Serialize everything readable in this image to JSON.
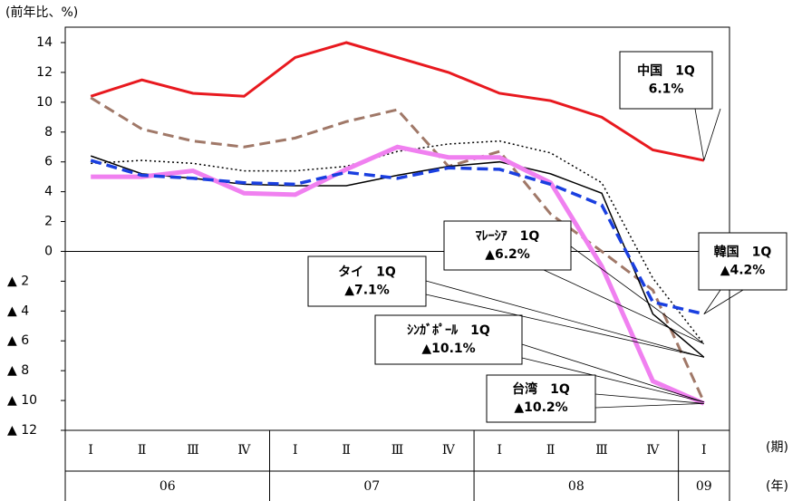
{
  "chart_data": {
    "type": "line",
    "y_label": "(前年比、%)",
    "categories": [
      "Ⅰ",
      "Ⅱ",
      "Ⅲ",
      "Ⅳ",
      "Ⅰ",
      "Ⅱ",
      "Ⅲ",
      "Ⅳ",
      "Ⅰ",
      "Ⅱ",
      "Ⅲ",
      "Ⅳ",
      "Ⅰ"
    ],
    "x_label": "(期)",
    "year_label": "(年)",
    "years": [
      {
        "label": "06",
        "count": 4
      },
      {
        "label": "07",
        "count": 4
      },
      {
        "label": "08",
        "count": 4
      },
      {
        "label": "09",
        "count": 1
      }
    ],
    "ylim": [
      -12,
      14
    ],
    "yticks": [
      {
        "value": -12,
        "label": "▲ 12"
      },
      {
        "value": -10,
        "label": "▲ 10"
      },
      {
        "value": -8,
        "label": "▲ 8"
      },
      {
        "value": -6,
        "label": "▲ 6"
      },
      {
        "value": -4,
        "label": "▲ 4"
      },
      {
        "value": -2,
        "label": "▲ 2"
      },
      0,
      2,
      4,
      6,
      8,
      10,
      12,
      14
    ],
    "series": [
      {
        "color": "#e8191f",
        "style": "solid",
        "width": 3,
        "annotation": [
          "中国　1Q",
          "6.1%"
        ],
        "values": [
          10.4,
          11.5,
          10.6,
          10.4,
          13.0,
          14.0,
          13.0,
          12.0,
          10.6,
          10.1,
          9.0,
          6.8,
          6.1
        ]
      },
      {
        "color": "#a07868",
        "style": "dashed",
        "width": 3,
        "annotation": [
          "ｼﾝｶﾞﾎﾟｰﾙ　1Q",
          "▲10.1%"
        ],
        "values": [
          10.3,
          8.2,
          7.4,
          7.0,
          7.6,
          8.7,
          9.5,
          5.7,
          6.7,
          2.5,
          0.0,
          -2.6,
          -10.1
        ]
      },
      {
        "color": "#000000",
        "style": "dotted",
        "width": 1.5,
        "annotation": [
          "ﾏﾚｰｼｱ　1Q",
          "▲6.2%"
        ],
        "values": [
          5.9,
          6.1,
          5.9,
          5.4,
          5.4,
          5.7,
          6.7,
          7.2,
          7.4,
          6.6,
          4.6,
          -1.8,
          -6.2
        ]
      },
      {
        "color": "#000000",
        "style": "solid",
        "width": 1.5,
        "annotation": [
          "タイ　1Q",
          "▲7.1%"
        ],
        "values": [
          6.4,
          5.2,
          4.9,
          4.5,
          4.4,
          4.4,
          5.1,
          5.7,
          6.0,
          5.2,
          3.9,
          -4.2,
          -7.1
        ]
      },
      {
        "color": "#f080f0",
        "style": "solid",
        "width": 5,
        "annotation": [
          "台湾　1Q",
          "▲10.2%"
        ],
        "values": [
          5.0,
          5.0,
          5.4,
          3.9,
          3.8,
          5.5,
          7.0,
          6.3,
          6.3,
          4.6,
          -1.0,
          -8.7,
          -10.2
        ]
      },
      {
        "color": "#1a3fe0",
        "style": "dashed",
        "width": 3.5,
        "annotation": [
          "韓国　1Q",
          "▲4.2%"
        ],
        "values": [
          6.1,
          5.1,
          4.9,
          4.6,
          4.5,
          5.3,
          4.9,
          5.6,
          5.5,
          4.5,
          3.1,
          -3.4,
          -4.2
        ]
      }
    ]
  }
}
